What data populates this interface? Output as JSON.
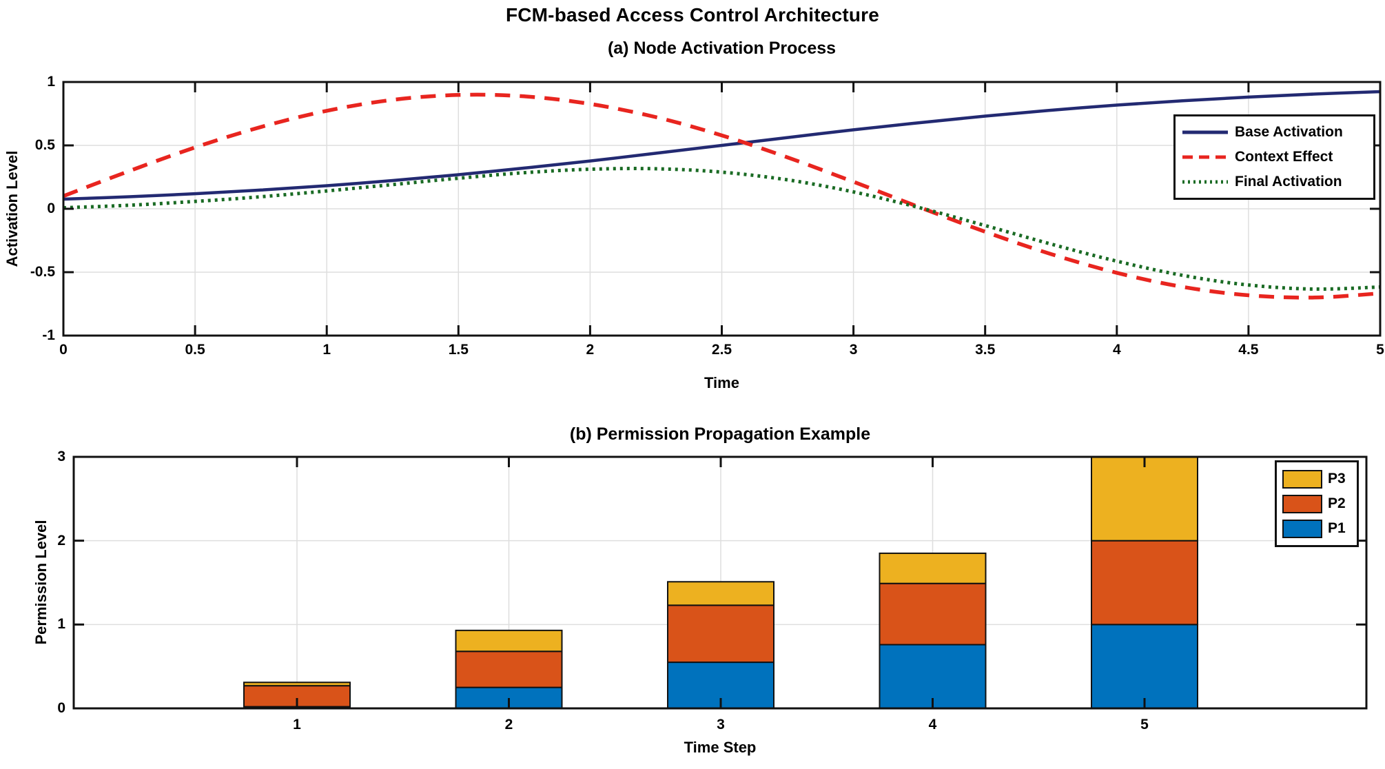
{
  "figure": {
    "title": "FCM-based Access Control Architecture",
    "background": "#ffffff"
  },
  "colors": {
    "frame": "#111111",
    "grid": "#dedede",
    "text": "#000000",
    "line_base": "#232a72",
    "line_context": "#e8251f",
    "line_final": "#1a6b24",
    "bar_p1": "#0072bd",
    "bar_p2": "#d95319",
    "bar_p3": "#edb120"
  },
  "chart_data": [
    {
      "type": "line",
      "title": "(a) Node Activation Process",
      "xlabel": "Time",
      "ylabel": "Activation Level",
      "xlim": [
        0,
        5
      ],
      "ylim": [
        -1,
        1
      ],
      "xticks": [
        0,
        0.5,
        1,
        1.5,
        2,
        2.5,
        3,
        3.5,
        4,
        4.5,
        5
      ],
      "yticks": [
        -1,
        -0.5,
        0,
        0.5,
        1
      ],
      "grid": true,
      "legend_position": "upper-right",
      "x": [
        0,
        0.25,
        0.5,
        0.75,
        1,
        1.25,
        1.5,
        1.75,
        2,
        2.25,
        2.5,
        2.75,
        3,
        3.25,
        3.5,
        3.75,
        4,
        4.25,
        4.5,
        4.75,
        5
      ],
      "series": [
        {
          "name": "Base Activation",
          "style": "solid",
          "color": "#232a72",
          "values": [
            0.076,
            0.095,
            0.119,
            0.148,
            0.182,
            0.223,
            0.269,
            0.321,
            0.377,
            0.438,
            0.5,
            0.562,
            0.623,
            0.679,
            0.731,
            0.777,
            0.818,
            0.852,
            0.881,
            0.905,
            0.924
          ]
        },
        {
          "name": "Context Effect",
          "style": "dashed",
          "color": "#e8251f",
          "values": [
            0.1,
            0.298,
            0.484,
            0.645,
            0.773,
            0.859,
            0.898,
            0.887,
            0.827,
            0.723,
            0.579,
            0.405,
            0.213,
            0.013,
            -0.181,
            -0.357,
            -0.505,
            -0.616,
            -0.682,
            -0.7,
            -0.667
          ]
        },
        {
          "name": "Final Activation",
          "style": "dotted",
          "color": "#1a6b24",
          "values": [
            0.008,
            0.028,
            0.058,
            0.095,
            0.141,
            0.191,
            0.241,
            0.285,
            0.312,
            0.316,
            0.289,
            0.228,
            0.133,
            0.009,
            -0.132,
            -0.278,
            -0.413,
            -0.525,
            -0.601,
            -0.633,
            -0.617
          ]
        }
      ]
    },
    {
      "type": "bar",
      "stacked": true,
      "title": "(b) Permission Propagation Example",
      "xlabel": "Time Step",
      "ylabel": "Permission Level",
      "ylim": [
        0,
        3
      ],
      "yticks": [
        0,
        1,
        2,
        3
      ],
      "categories": [
        1,
        2,
        3,
        4,
        5
      ],
      "grid": true,
      "legend_position": "upper-right",
      "legend_order": [
        "P3",
        "P2",
        "P1"
      ],
      "series": [
        {
          "name": "P1",
          "color": "#0072bd",
          "values": [
            0.02,
            0.25,
            0.55,
            0.76,
            1.0
          ]
        },
        {
          "name": "P2",
          "color": "#d95319",
          "values": [
            0.25,
            0.43,
            0.68,
            0.73,
            1.0
          ]
        },
        {
          "name": "P3",
          "color": "#edb120",
          "values": [
            0.04,
            0.25,
            0.28,
            0.36,
            1.0
          ]
        }
      ]
    }
  ]
}
